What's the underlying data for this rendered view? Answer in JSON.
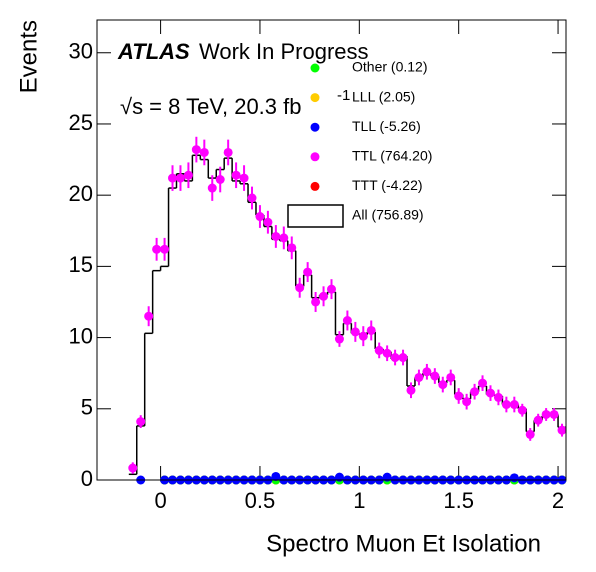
{
  "chart_data": {
    "type": "histogram",
    "xlabel": "Spectro Muon Et Isolation",
    "ylabel": "Events",
    "annotations": [
      "ATLAS",
      "Work In Progress",
      "√s = 8 TeV, 20.3 fb",
      "-1"
    ],
    "bins": [
      -0.16,
      -0.12,
      -0.08,
      -0.04,
      0,
      0.04,
      0.08,
      0.12,
      0.16,
      0.2,
      0.24,
      0.28,
      0.32,
      0.36,
      0.4,
      0.44,
      0.48,
      0.52,
      0.56,
      0.6,
      0.64,
      0.68,
      0.72,
      0.76,
      0.8,
      0.84,
      0.88,
      0.92,
      0.96,
      1,
      1.04,
      1.08,
      1.12,
      1.16,
      1.2,
      1.24,
      1.28,
      1.32,
      1.36,
      1.4,
      1.44,
      1.48,
      1.52,
      1.56,
      1.6,
      1.64,
      1.68,
      1.72,
      1.76,
      1.8,
      1.84,
      1.88,
      1.92,
      1.96,
      2,
      2.04
    ],
    "xlim": [
      -0.32,
      2.04
    ],
    "ylim": [
      0,
      32.3
    ],
    "xticks": [
      0,
      0.5,
      1,
      1.5,
      2
    ],
    "yticks": [
      0,
      5,
      10,
      15,
      20,
      25,
      30
    ],
    "series": [
      {
        "name": "Other (0.12)",
        "color": "#00ff00",
        "style": "points",
        "values": [
          null,
          null,
          null,
          null,
          0,
          0,
          0,
          0,
          0,
          0,
          0,
          0,
          0,
          0,
          0,
          0,
          0,
          0,
          0,
          0,
          0,
          0,
          0,
          0,
          0,
          0,
          0,
          0,
          0,
          0,
          0,
          0,
          0,
          0,
          0,
          0,
          0,
          0,
          0,
          0,
          0,
          0,
          0,
          0,
          0,
          0,
          0,
          0,
          0,
          0,
          0,
          0,
          0,
          0,
          0
        ]
      },
      {
        "name": "LLL (2.05)",
        "color": "#ffcc00",
        "style": "points",
        "values": [
          null,
          null,
          null,
          null,
          0,
          0,
          0,
          0,
          0,
          0,
          0,
          0,
          0,
          0,
          0,
          0,
          0,
          0,
          0,
          0,
          0,
          0,
          0,
          0,
          0,
          0,
          0,
          0,
          0,
          0,
          0,
          0,
          0,
          0,
          0,
          0,
          0,
          0,
          0,
          0,
          0,
          0,
          0,
          0,
          0,
          0,
          0,
          0,
          0,
          0,
          0,
          0,
          0,
          0,
          0
        ]
      },
      {
        "name": "TLL (-5.26)",
        "color": "#0000ff",
        "style": "points",
        "values": [
          null,
          0,
          null,
          null,
          0,
          0,
          0,
          0,
          0,
          0,
          0,
          0,
          0,
          0,
          0,
          0,
          0,
          0,
          0.25,
          0,
          0,
          0,
          0,
          0,
          0,
          0,
          0.2,
          0,
          0,
          0,
          0,
          0,
          0.2,
          0,
          0,
          0,
          0,
          0,
          0,
          0,
          0,
          0,
          0,
          0,
          0,
          0,
          0,
          0,
          0.15,
          0,
          0,
          0,
          0,
          0,
          0
        ]
      },
      {
        "name": "TTL (764.20)",
        "color": "#ff00ff",
        "style": "points",
        "values": [
          0.84,
          4.1,
          11.5,
          16.2,
          16.2,
          21.2,
          21.2,
          21.4,
          23.2,
          23.0,
          20.5,
          21.1,
          23.0,
          21.4,
          21.2,
          19.8,
          18.5,
          18.1,
          17.1,
          17.0,
          16.3,
          13.5,
          14.6,
          12.5,
          12.9,
          13.4,
          9.9,
          11.2,
          10.4,
          10.1,
          10.5,
          9.1,
          8.9,
          8.6,
          8.6,
          6.3,
          7.2,
          7.6,
          7.3,
          6.7,
          7.2,
          5.9,
          5.5,
          6.2,
          6.8,
          6.1,
          5.8,
          5.3,
          5.3,
          4.9,
          3.2,
          4.2,
          4.6,
          4.6,
          3.5
        ],
        "errors": [
          0.4,
          0.45,
          0.7,
          0.8,
          0.8,
          0.9,
          0.9,
          0.9,
          0.9,
          0.9,
          0.9,
          0.9,
          0.9,
          0.9,
          0.9,
          0.8,
          0.8,
          0.8,
          0.8,
          0.8,
          0.8,
          0.7,
          0.7,
          0.7,
          0.7,
          0.7,
          0.55,
          0.7,
          0.7,
          0.7,
          0.7,
          0.55,
          0.55,
          0.55,
          0.55,
          0.55,
          0.55,
          0.55,
          0.55,
          0.55,
          0.55,
          0.55,
          0.55,
          0.55,
          0.55,
          0.55,
          0.55,
          0.55,
          0.55,
          0.45,
          0.45,
          0.45,
          0.45,
          0.45,
          0.45
        ]
      },
      {
        "name": "TTT (-4.22)",
        "color": "#ff0000",
        "style": "points",
        "values": [
          null,
          null,
          null,
          null,
          0,
          0,
          0,
          0,
          0,
          0,
          0,
          0,
          0,
          0,
          0,
          0,
          0,
          0,
          0,
          0,
          0,
          0,
          0,
          0,
          0,
          0,
          0,
          0,
          0,
          0,
          0,
          0,
          0,
          0,
          0,
          0,
          0,
          0,
          0,
          0,
          0,
          0,
          0,
          0,
          0,
          0,
          0,
          0,
          0,
          0,
          0,
          0,
          0,
          0,
          0
        ]
      },
      {
        "name": "All (756.89)",
        "color": "#000000",
        "style": "step",
        "values": [
          0.4,
          3.8,
          10.3,
          14.7,
          15.0,
          20.5,
          21.5,
          21.0,
          22.8,
          22.5,
          21.2,
          21.8,
          22.6,
          21.0,
          20.8,
          19.5,
          18.6,
          17.8,
          16.9,
          16.8,
          16.1,
          13.6,
          14.4,
          12.8,
          13.0,
          13.2,
          10.2,
          11.0,
          10.3,
          10.2,
          10.4,
          9.2,
          9.0,
          8.5,
          8.7,
          6.6,
          7.2,
          7.5,
          7.3,
          6.8,
          7.0,
          6.0,
          5.7,
          6.2,
          6.6,
          6.0,
          5.9,
          5.3,
          5.3,
          5.0,
          3.4,
          4.2,
          4.5,
          4.6,
          3.7
        ]
      }
    ]
  }
}
